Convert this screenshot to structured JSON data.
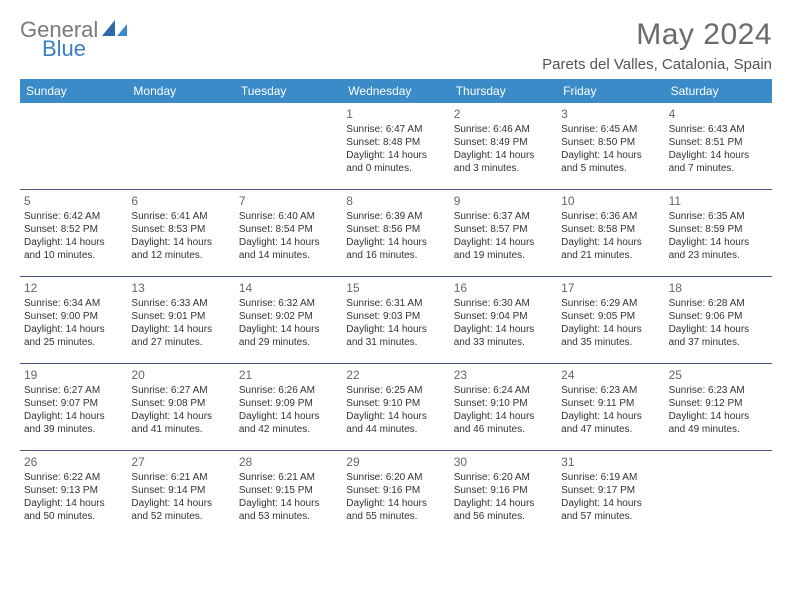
{
  "logo": {
    "top": "General",
    "bottom": "Blue"
  },
  "title": "May 2024",
  "location": "Parets del Valles, Catalonia, Spain",
  "dayNames": [
    "Sunday",
    "Monday",
    "Tuesday",
    "Wednesday",
    "Thursday",
    "Friday",
    "Saturday"
  ],
  "colors": {
    "headerBg": "#3b8bc9",
    "headerText": "#ffffff",
    "weekBorder": "#4a5a7a",
    "logoGray": "#7a7a7a",
    "logoBlue": "#3b7fc4",
    "titleColor": "#6b6b6b"
  },
  "startOffset": 3,
  "days": [
    {
      "n": "1",
      "sunrise": "6:47 AM",
      "sunset": "8:48 PM",
      "daylight": "14 hours and 0 minutes."
    },
    {
      "n": "2",
      "sunrise": "6:46 AM",
      "sunset": "8:49 PM",
      "daylight": "14 hours and 3 minutes."
    },
    {
      "n": "3",
      "sunrise": "6:45 AM",
      "sunset": "8:50 PM",
      "daylight": "14 hours and 5 minutes."
    },
    {
      "n": "4",
      "sunrise": "6:43 AM",
      "sunset": "8:51 PM",
      "daylight": "14 hours and 7 minutes."
    },
    {
      "n": "5",
      "sunrise": "6:42 AM",
      "sunset": "8:52 PM",
      "daylight": "14 hours and 10 minutes."
    },
    {
      "n": "6",
      "sunrise": "6:41 AM",
      "sunset": "8:53 PM",
      "daylight": "14 hours and 12 minutes."
    },
    {
      "n": "7",
      "sunrise": "6:40 AM",
      "sunset": "8:54 PM",
      "daylight": "14 hours and 14 minutes."
    },
    {
      "n": "8",
      "sunrise": "6:39 AM",
      "sunset": "8:56 PM",
      "daylight": "14 hours and 16 minutes."
    },
    {
      "n": "9",
      "sunrise": "6:37 AM",
      "sunset": "8:57 PM",
      "daylight": "14 hours and 19 minutes."
    },
    {
      "n": "10",
      "sunrise": "6:36 AM",
      "sunset": "8:58 PM",
      "daylight": "14 hours and 21 minutes."
    },
    {
      "n": "11",
      "sunrise": "6:35 AM",
      "sunset": "8:59 PM",
      "daylight": "14 hours and 23 minutes."
    },
    {
      "n": "12",
      "sunrise": "6:34 AM",
      "sunset": "9:00 PM",
      "daylight": "14 hours and 25 minutes."
    },
    {
      "n": "13",
      "sunrise": "6:33 AM",
      "sunset": "9:01 PM",
      "daylight": "14 hours and 27 minutes."
    },
    {
      "n": "14",
      "sunrise": "6:32 AM",
      "sunset": "9:02 PM",
      "daylight": "14 hours and 29 minutes."
    },
    {
      "n": "15",
      "sunrise": "6:31 AM",
      "sunset": "9:03 PM",
      "daylight": "14 hours and 31 minutes."
    },
    {
      "n": "16",
      "sunrise": "6:30 AM",
      "sunset": "9:04 PM",
      "daylight": "14 hours and 33 minutes."
    },
    {
      "n": "17",
      "sunrise": "6:29 AM",
      "sunset": "9:05 PM",
      "daylight": "14 hours and 35 minutes."
    },
    {
      "n": "18",
      "sunrise": "6:28 AM",
      "sunset": "9:06 PM",
      "daylight": "14 hours and 37 minutes."
    },
    {
      "n": "19",
      "sunrise": "6:27 AM",
      "sunset": "9:07 PM",
      "daylight": "14 hours and 39 minutes."
    },
    {
      "n": "20",
      "sunrise": "6:27 AM",
      "sunset": "9:08 PM",
      "daylight": "14 hours and 41 minutes."
    },
    {
      "n": "21",
      "sunrise": "6:26 AM",
      "sunset": "9:09 PM",
      "daylight": "14 hours and 42 minutes."
    },
    {
      "n": "22",
      "sunrise": "6:25 AM",
      "sunset": "9:10 PM",
      "daylight": "14 hours and 44 minutes."
    },
    {
      "n": "23",
      "sunrise": "6:24 AM",
      "sunset": "9:10 PM",
      "daylight": "14 hours and 46 minutes."
    },
    {
      "n": "24",
      "sunrise": "6:23 AM",
      "sunset": "9:11 PM",
      "daylight": "14 hours and 47 minutes."
    },
    {
      "n": "25",
      "sunrise": "6:23 AM",
      "sunset": "9:12 PM",
      "daylight": "14 hours and 49 minutes."
    },
    {
      "n": "26",
      "sunrise": "6:22 AM",
      "sunset": "9:13 PM",
      "daylight": "14 hours and 50 minutes."
    },
    {
      "n": "27",
      "sunrise": "6:21 AM",
      "sunset": "9:14 PM",
      "daylight": "14 hours and 52 minutes."
    },
    {
      "n": "28",
      "sunrise": "6:21 AM",
      "sunset": "9:15 PM",
      "daylight": "14 hours and 53 minutes."
    },
    {
      "n": "29",
      "sunrise": "6:20 AM",
      "sunset": "9:16 PM",
      "daylight": "14 hours and 55 minutes."
    },
    {
      "n": "30",
      "sunrise": "6:20 AM",
      "sunset": "9:16 PM",
      "daylight": "14 hours and 56 minutes."
    },
    {
      "n": "31",
      "sunrise": "6:19 AM",
      "sunset": "9:17 PM",
      "daylight": "14 hours and 57 minutes."
    }
  ],
  "labels": {
    "sunrise": "Sunrise:",
    "sunset": "Sunset:",
    "daylight": "Daylight:"
  }
}
